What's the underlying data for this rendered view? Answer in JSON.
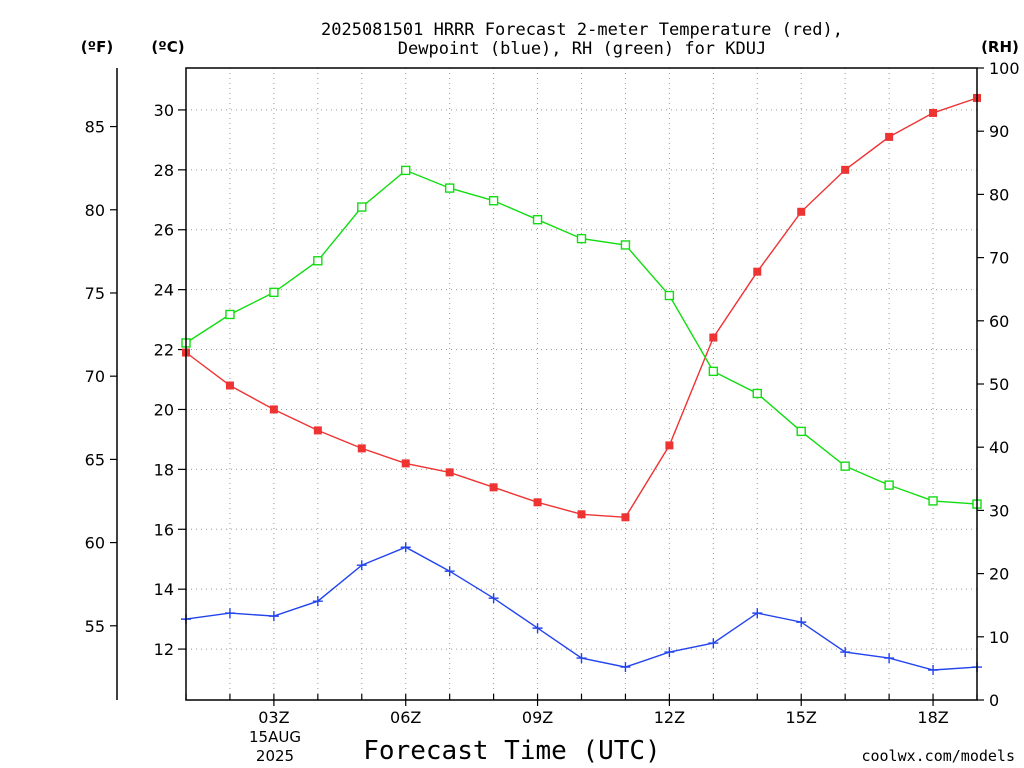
{
  "title_line1": "2025081501 HRRR Forecast 2-meter Temperature (red),",
  "title_line2": "Dewpoint (blue), RH (green) for KDUJ",
  "unit_f": "(ºF)",
  "unit_c": "(ºC)",
  "unit_rh": "(RH)",
  "x_title": "Forecast Time (UTC)",
  "date_label_line1": "15AUG",
  "date_label_line2": "2025",
  "credit": "coolwx.com/models",
  "colors": {
    "temperature": "#ee3333",
    "dewpoint": "#2244ee",
    "rh": "#11dd11",
    "grid": "#999999",
    "credit": "#dd3333"
  },
  "chart_data": {
    "type": "line",
    "x": [
      1,
      2,
      3,
      4,
      5,
      6,
      7,
      8,
      9,
      10,
      11,
      12,
      13,
      14,
      15,
      16,
      17,
      18,
      19
    ],
    "xlim": [
      1,
      19
    ],
    "x_ticks": [
      {
        "x": 3,
        "label": "03Z"
      },
      {
        "x": 6,
        "label": "06Z"
      },
      {
        "x": 9,
        "label": "09Z"
      },
      {
        "x": 12,
        "label": "12Z"
      },
      {
        "x": 15,
        "label": "15Z"
      },
      {
        "x": 18,
        "label": "18Z"
      }
    ],
    "y_celsius": {
      "lim": [
        10.3,
        31.4
      ],
      "ticks": [
        12,
        14,
        16,
        18,
        20,
        22,
        24,
        26,
        28,
        30
      ]
    },
    "y_fahrenheit": {
      "ticks": [
        55,
        60,
        65,
        70,
        75,
        80,
        85
      ]
    },
    "y_rh": {
      "lim": [
        0,
        100
      ],
      "ticks": [
        0,
        10,
        20,
        30,
        40,
        50,
        60,
        70,
        80,
        90,
        100
      ]
    },
    "grid": true,
    "series": [
      {
        "key": "temperature",
        "axis": "celsius",
        "marker": "filled-square",
        "values": [
          21.9,
          20.8,
          20.0,
          19.3,
          18.7,
          18.2,
          17.9,
          17.4,
          16.9,
          16.5,
          16.4,
          18.8,
          22.4,
          24.6,
          26.6,
          28.0,
          29.1,
          29.9,
          30.4
        ]
      },
      {
        "key": "dewpoint",
        "axis": "celsius",
        "marker": "plus",
        "values": [
          13.0,
          13.2,
          13.1,
          13.6,
          14.8,
          15.4,
          14.6,
          13.7,
          12.7,
          11.7,
          11.4,
          11.9,
          12.2,
          13.2,
          12.9,
          11.9,
          11.7,
          11.3,
          11.4
        ]
      },
      {
        "key": "rh",
        "axis": "rh",
        "marker": "open-square",
        "values": [
          56.5,
          61.0,
          64.5,
          69.5,
          78.0,
          83.8,
          81.0,
          79.0,
          76.0,
          73.0,
          72.0,
          64.0,
          52.0,
          48.5,
          42.5,
          37.0,
          34.0,
          31.5,
          31.0
        ]
      }
    ]
  }
}
